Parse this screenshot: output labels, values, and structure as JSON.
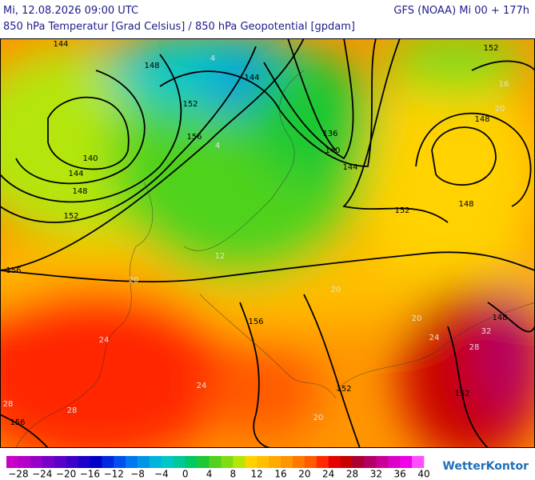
{
  "header": {
    "datetime": "Mi, 12.08.2026 09:00 UTC",
    "model": "GFS (NOAA) Mi 00 + 177h",
    "subtitle": "850 hPa Temperatur [Grad Celsius] / 850 hPa Geopotential [gpdam]"
  },
  "map": {
    "geopotential_labels": [
      144,
      148,
      144,
      152,
      156,
      140,
      144,
      148,
      152,
      156,
      136,
      140,
      144,
      152,
      152,
      148,
      148,
      148,
      156,
      152,
      152,
      156
    ],
    "temperature_labels": [
      4,
      4,
      12,
      20,
      24,
      24,
      28,
      28,
      20,
      20,
      24,
      28,
      32,
      20,
      16,
      20
    ]
  },
  "colorbar": {
    "labels": [
      "−28",
      "−24",
      "−20",
      "−16",
      "−12",
      "−8",
      "−4",
      "0",
      "4",
      "8",
      "12",
      "16",
      "20",
      "24",
      "28",
      "32",
      "36",
      "40"
    ],
    "colors": [
      "#c800c8",
      "#b400c8",
      "#9600c8",
      "#7800c8",
      "#5a00c8",
      "#3c00c8",
      "#1e00c8",
      "#0000c8",
      "#0028dc",
      "#0050f0",
      "#0078f0",
      "#0096e6",
      "#00b4dc",
      "#00c8c8",
      "#00c896",
      "#00c864",
      "#1ec832",
      "#50d21e",
      "#82dc14",
      "#b4e60a",
      "#ffd200",
      "#ffbe00",
      "#ffaa00",
      "#ff9600",
      "#ff7800",
      "#ff5a00",
      "#ff2800",
      "#e60000",
      "#c80000",
      "#aa0032",
      "#b40064",
      "#c80096",
      "#dc00c8",
      "#f000e6",
      "#ff50ff"
    ]
  },
  "brand": "WetterKontor"
}
